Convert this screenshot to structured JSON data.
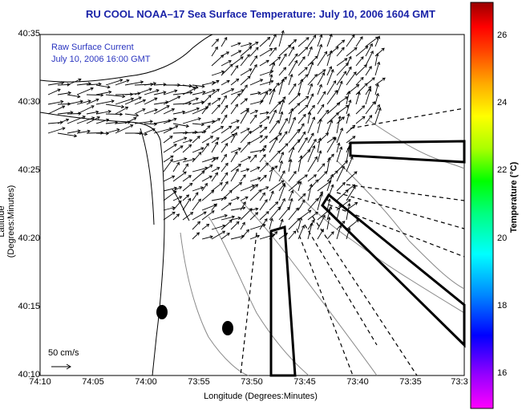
{
  "title": "RU COOL  NOAA–17  Sea Surface Temperature:  July 10, 2006 1604 GMT",
  "legend": {
    "line1": "Raw Surface Current",
    "line2": "July 10, 2006 16:00 GMT"
  },
  "axes": {
    "xlabel": "Longitude (Degrees:Minutes)",
    "ylabel": "Latitude (Degrees:Minutes)",
    "x_ticks": [
      "74:10",
      "74:05",
      "74:00",
      "73:55",
      "73:50",
      "73:45",
      "73:40",
      "73:35",
      "73:3"
    ],
    "y_ticks": [
      "40:35",
      "40:30",
      "40:25",
      "40:20",
      "40:15",
      "40:10"
    ]
  },
  "scale_arrow": {
    "label": "50 cm/s",
    "speed_cm_s": 50
  },
  "colorbar": {
    "label": "Temperature (°C)",
    "ticks": [
      "26",
      "24",
      "22",
      "20",
      "18",
      "16"
    ],
    "colors": [
      "#ff00ff",
      "#9900ff",
      "#0000ff",
      "#0088ff",
      "#00ffff",
      "#00ff80",
      "#00ff00",
      "#aaff00",
      "#ffff00",
      "#ffaa00",
      "#ff4400",
      "#ff0000",
      "#990000"
    ]
  },
  "colors": {
    "title": "#1a23a8",
    "legend": "#2a35c0",
    "frame": "#000000",
    "coast": "#000000",
    "contour": "#888888"
  },
  "icons": {
    "moorings": "filled-ellipse",
    "tracks": "dashed-lines",
    "boxes": "black-outline-polygon"
  }
}
